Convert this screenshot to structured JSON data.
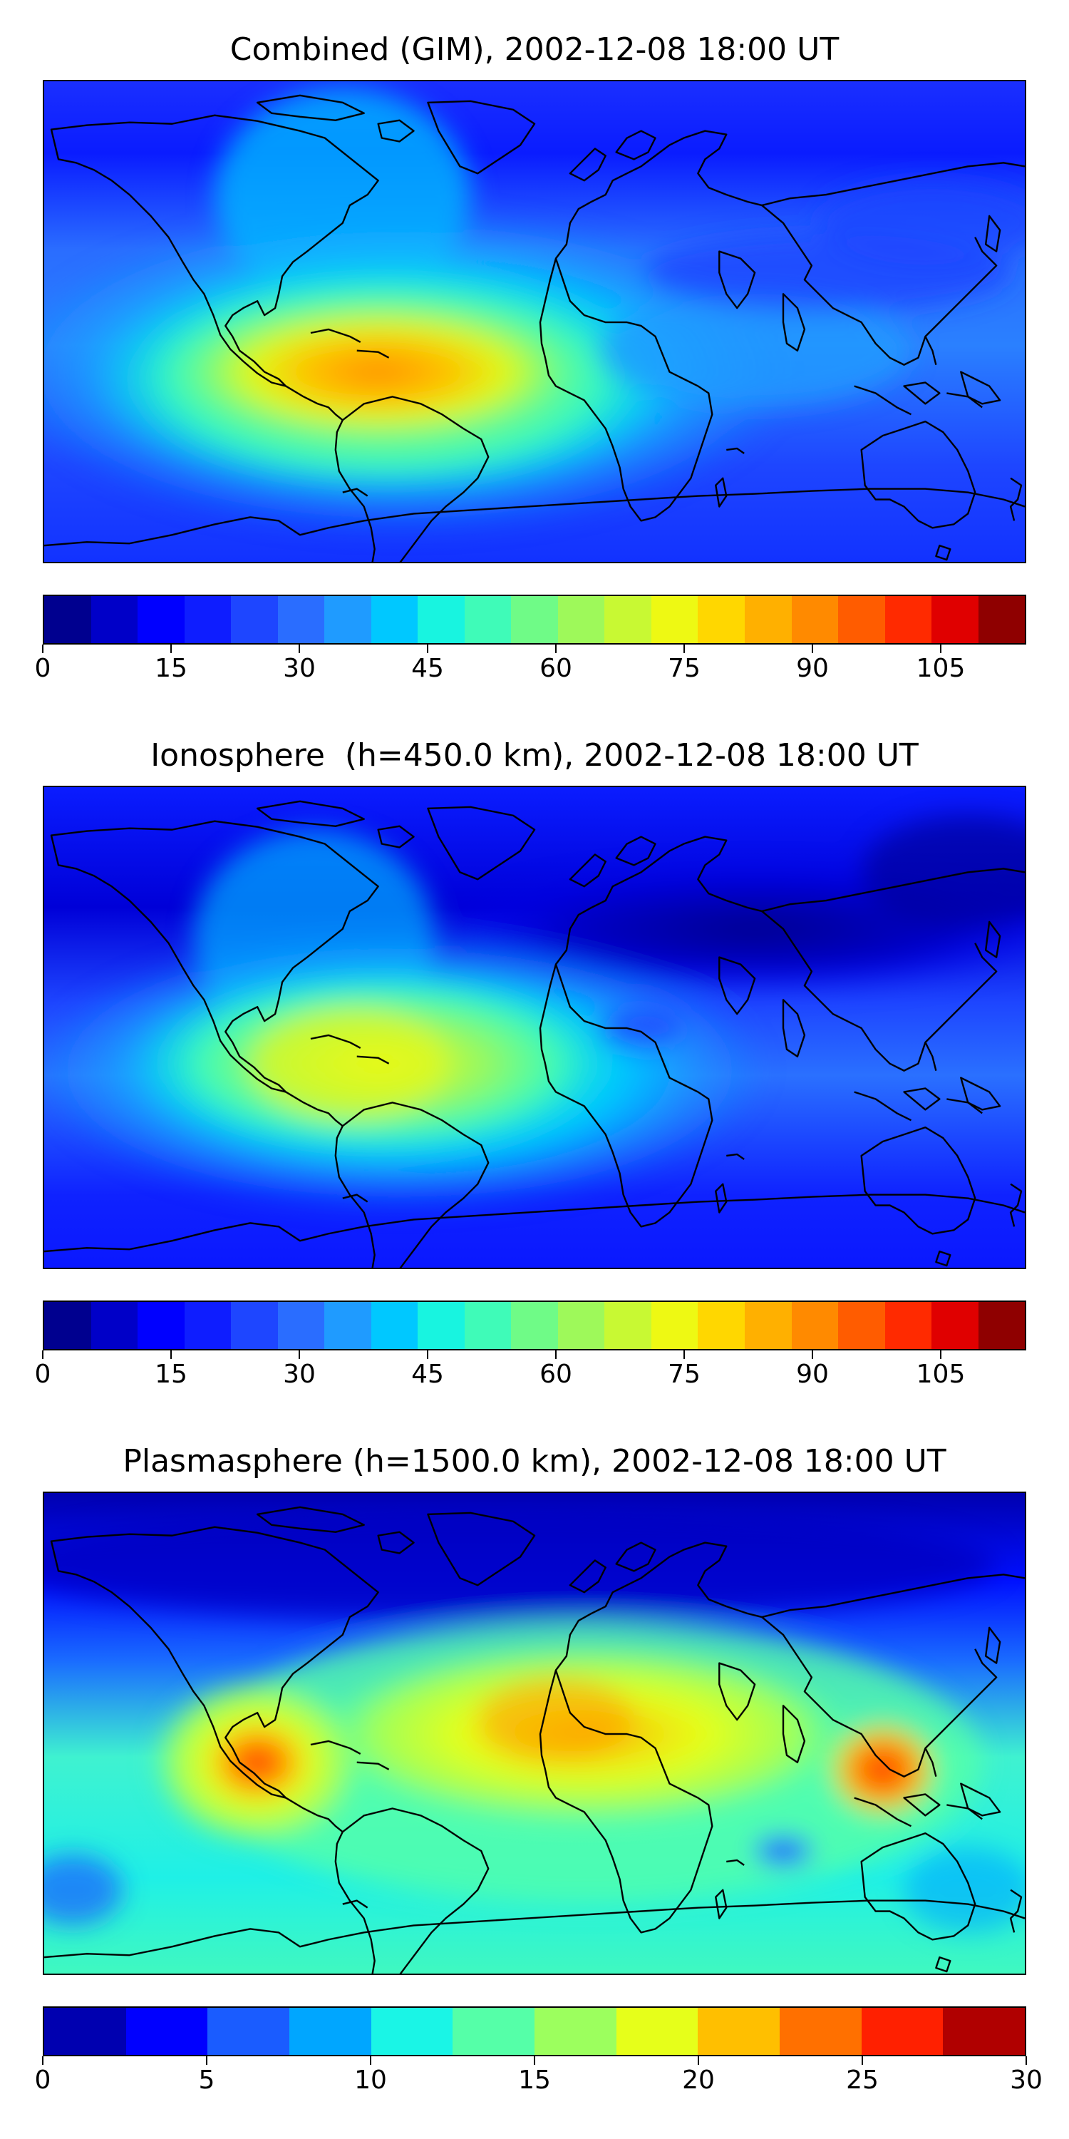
{
  "panels": [
    {
      "title": "Combined (GIM), 2002-12-08 18:00 UT",
      "colorbar": {
        "vmin": 0,
        "vmax": 115,
        "colors": [
          "#00008f",
          "#0000c8",
          "#0000ff",
          "#0e1dff",
          "#1e46ff",
          "#2a6dff",
          "#1f9bff",
          "#00c8ff",
          "#18f4e0",
          "#3ffbb8",
          "#6ffb87",
          "#9ef95a",
          "#c8f933",
          "#eef913",
          "#ffd700",
          "#ffb000",
          "#ff8a00",
          "#ff5c00",
          "#ff2a00",
          "#e00000",
          "#8f0000"
        ],
        "ticks": [
          "0",
          "15",
          "30",
          "45",
          "60",
          "75",
          "90",
          "105"
        ]
      }
    },
    {
      "title": "Ionosphere  (h=450.0 km), 2002-12-08 18:00 UT",
      "colorbar": {
        "vmin": 0,
        "vmax": 115,
        "colors": [
          "#00008f",
          "#0000c8",
          "#0000ff",
          "#0e1dff",
          "#1e46ff",
          "#2a6dff",
          "#1f9bff",
          "#00c8ff",
          "#18f4e0",
          "#3ffbb8",
          "#6ffb87",
          "#9ef95a",
          "#c8f933",
          "#eef913",
          "#ffd700",
          "#ffb000",
          "#ff8a00",
          "#ff5c00",
          "#ff2a00",
          "#e00000",
          "#8f0000"
        ],
        "ticks": [
          "0",
          "15",
          "30",
          "45",
          "60",
          "75",
          "90",
          "105"
        ]
      }
    },
    {
      "title": "Plasmasphere (h=1500.0 km), 2002-12-08 18:00 UT",
      "colorbar": {
        "vmin": 0,
        "vmax": 30,
        "colors": [
          "#0000b0",
          "#0000ff",
          "#1a5cff",
          "#00a6ff",
          "#1af5e6",
          "#55ffa8",
          "#9cff5e",
          "#e6ff1a",
          "#ffbf00",
          "#ff7000",
          "#ff2000",
          "#b00000"
        ],
        "ticks": [
          "0",
          "5",
          "10",
          "15",
          "20",
          "25",
          "30"
        ]
      }
    }
  ]
}
